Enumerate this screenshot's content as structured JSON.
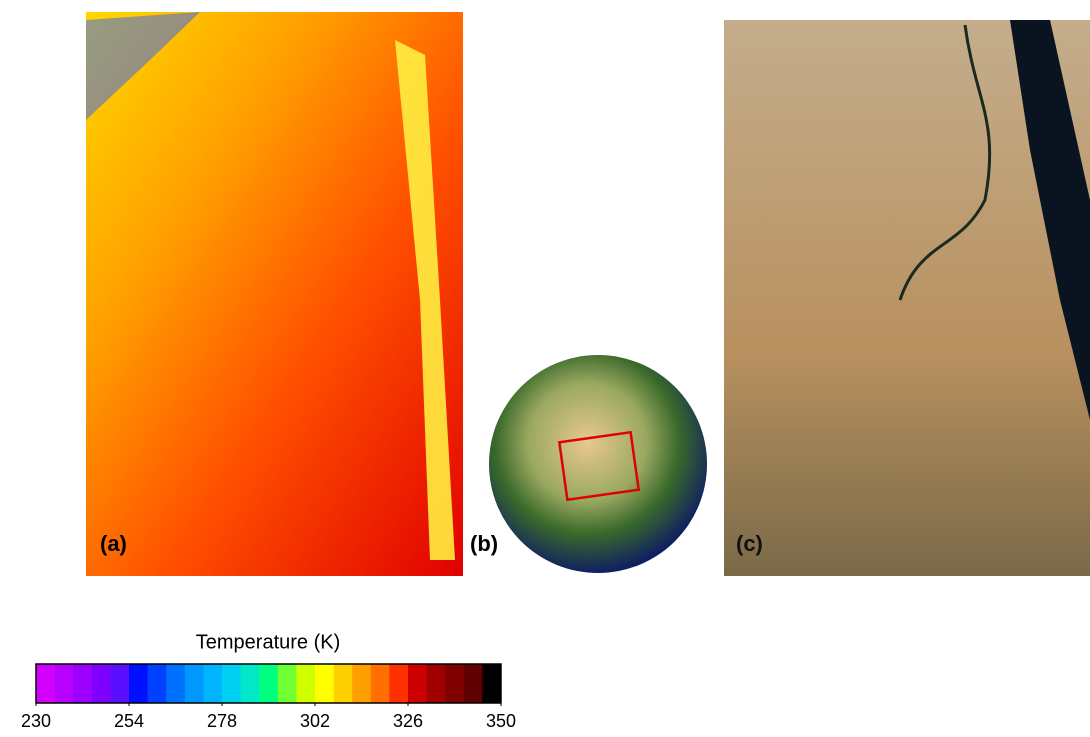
{
  "panels": {
    "a": "(a)",
    "b": "(b)",
    "c": "(c)"
  },
  "colorbar": {
    "title": "Temperature (K)",
    "range": [
      230,
      350
    ],
    "ticks": [
      230,
      254,
      278,
      302,
      326,
      350
    ],
    "colors": [
      "#d400ff",
      "#b800ff",
      "#9c00ff",
      "#7e00ff",
      "#5a10ff",
      "#0010ff",
      "#0040ff",
      "#0070ff",
      "#0098ff",
      "#00b4ff",
      "#00d0f0",
      "#00e8c8",
      "#00ff80",
      "#70ff30",
      "#d0ff00",
      "#ffff00",
      "#ffd000",
      "#ffa000",
      "#ff7000",
      "#ff3000",
      "#cc0000",
      "#a00000",
      "#800000",
      "#600000",
      "#000000"
    ]
  }
}
